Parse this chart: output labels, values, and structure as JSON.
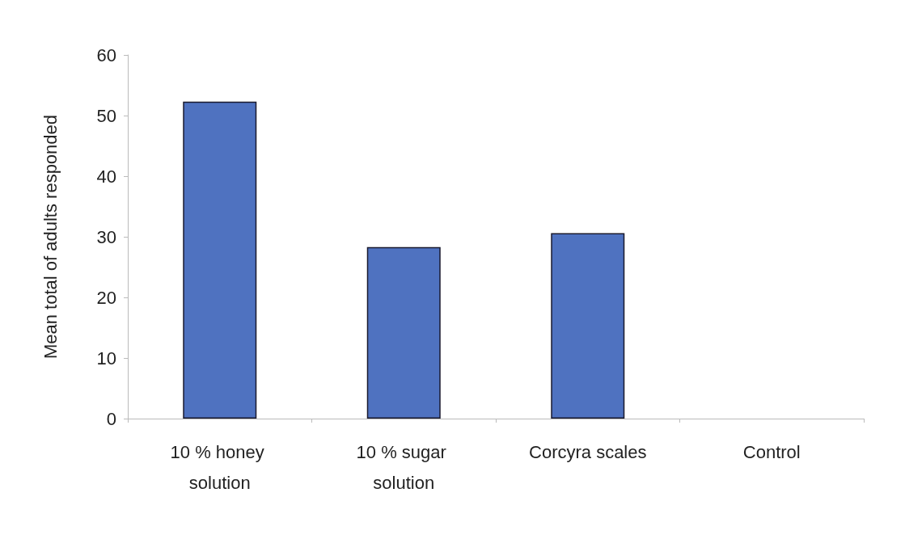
{
  "chart_data": {
    "type": "bar",
    "ylabel": "Mean total of adults responded",
    "categories": [
      "10 % honey solution",
      "10 % sugar solution",
      "Corcyra scales",
      "Control"
    ],
    "values": [
      52.3,
      28.3,
      30.6,
      0
    ],
    "color": "#4f72c0",
    "ylim": [
      0,
      60
    ],
    "yticks": [
      0,
      10,
      20,
      30,
      40,
      50,
      60
    ],
    "grid": false
  }
}
